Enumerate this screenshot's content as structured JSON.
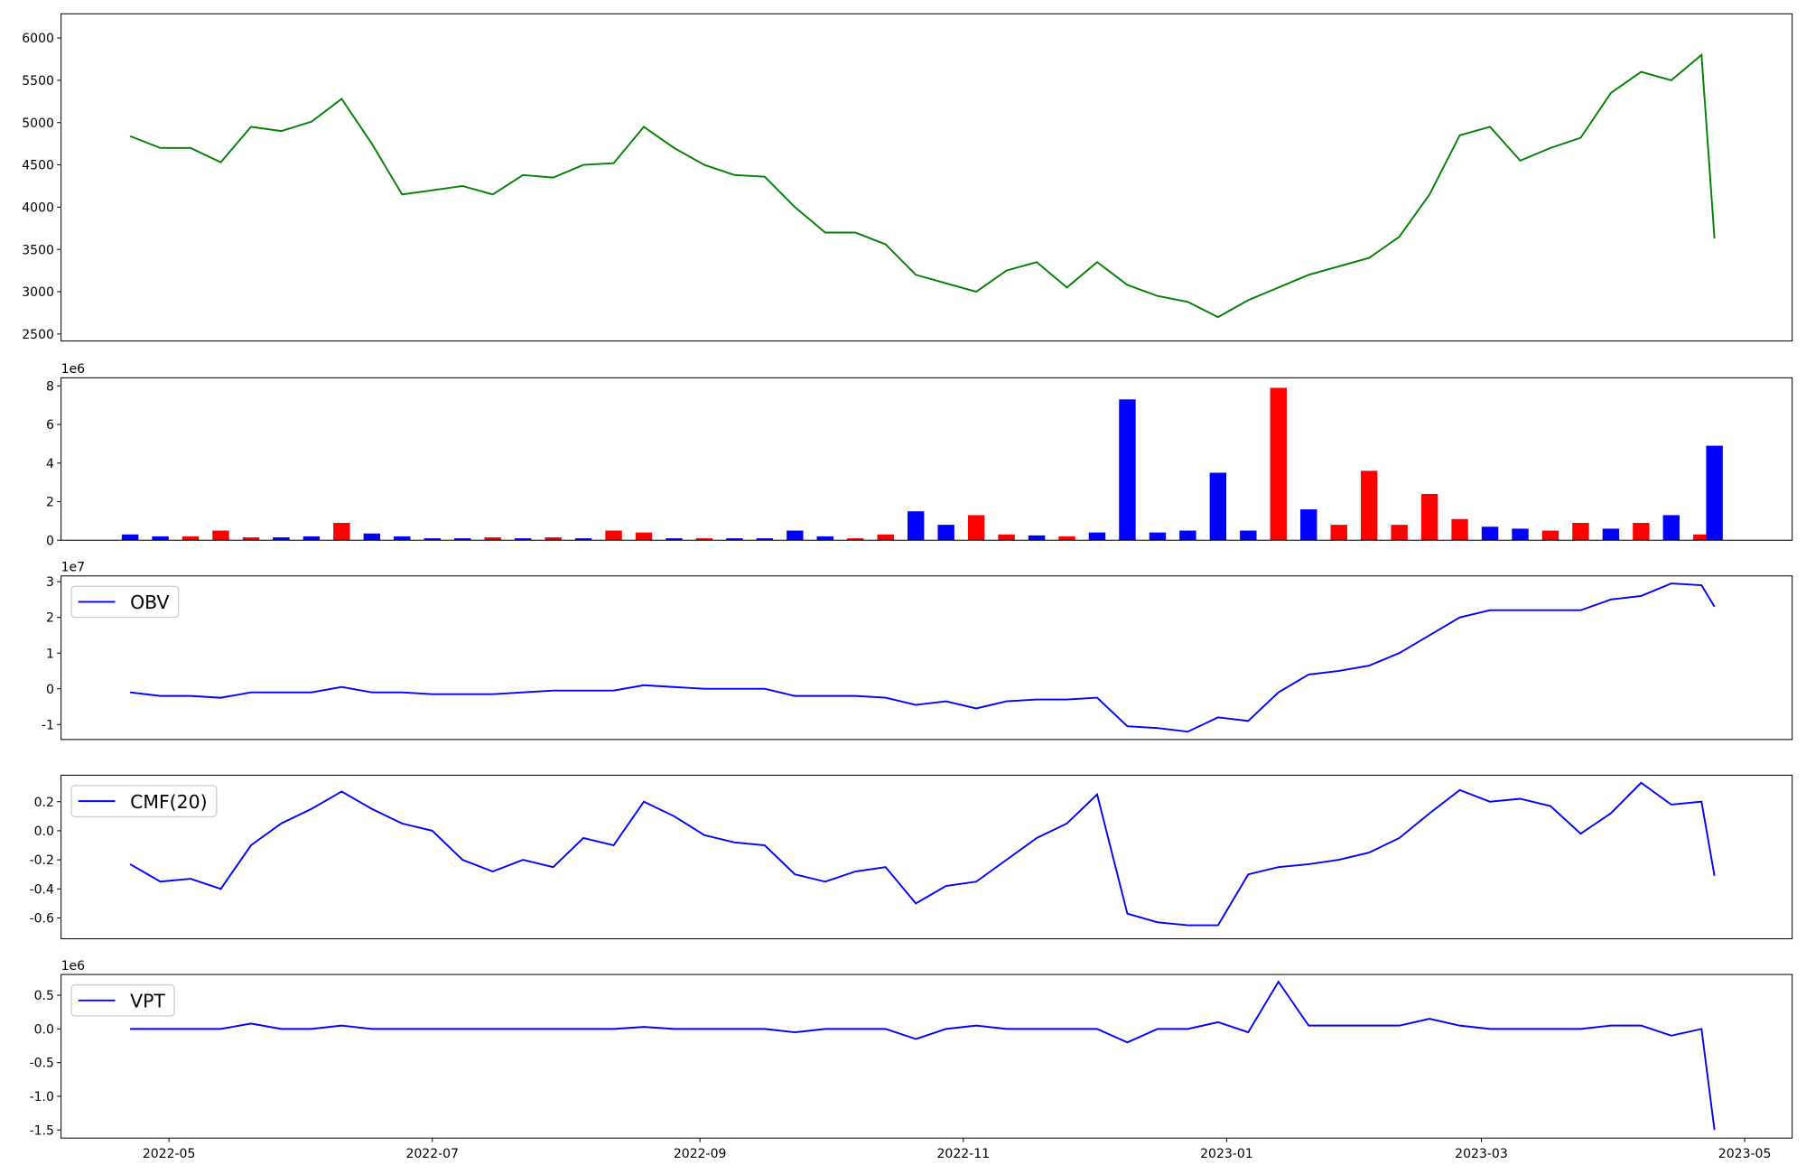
{
  "chart_data": [
    {
      "type": "line",
      "color": "#008000",
      "x": [
        "2022-04-22",
        "2022-04-29",
        "2022-05-06",
        "2022-05-13",
        "2022-05-20",
        "2022-05-27",
        "2022-06-03",
        "2022-06-10",
        "2022-06-17",
        "2022-06-24",
        "2022-07-01",
        "2022-07-08",
        "2022-07-15",
        "2022-07-22",
        "2022-07-29",
        "2022-08-05",
        "2022-08-12",
        "2022-08-19",
        "2022-08-26",
        "2022-09-02",
        "2022-09-09",
        "2022-09-16",
        "2022-09-23",
        "2022-09-30",
        "2022-10-07",
        "2022-10-14",
        "2022-10-21",
        "2022-10-28",
        "2022-11-04",
        "2022-11-11",
        "2022-11-18",
        "2022-11-25",
        "2022-12-02",
        "2022-12-09",
        "2022-12-16",
        "2022-12-23",
        "2022-12-30",
        "2023-01-06",
        "2023-01-13",
        "2023-01-20",
        "2023-01-27",
        "2023-02-03",
        "2023-02-10",
        "2023-02-17",
        "2023-02-24",
        "2023-03-03",
        "2023-03-10",
        "2023-03-17",
        "2023-03-24",
        "2023-03-31",
        "2023-04-07",
        "2023-04-14",
        "2023-04-21",
        "2023-04-24"
      ],
      "values": [
        4840,
        4700,
        4700,
        4530,
        4950,
        4900,
        5010,
        5280,
        4750,
        4150,
        4200,
        4250,
        4150,
        4380,
        4350,
        4500,
        4520,
        4950,
        4700,
        4500,
        4380,
        4360,
        4000,
        3700,
        3700,
        3560,
        3200,
        3100,
        3000,
        3250,
        3350,
        3050,
        3350,
        3080,
        2950,
        2880,
        2700,
        2900,
        3050,
        3200,
        3300,
        3400,
        3650,
        4150,
        4850,
        4950,
        4550,
        4700,
        4820,
        5350,
        5600,
        5500,
        5800,
        3630
      ],
      "xlim": [
        "2022-04-06",
        "2023-05-12"
      ],
      "ylim": [
        2418,
        6286
      ],
      "yticks": [
        2500,
        3000,
        3500,
        4000,
        4500,
        5000,
        5500,
        6000
      ]
    },
    {
      "type": "bar",
      "offset_label": "1e6",
      "x": [
        "2022-04-22",
        "2022-04-29",
        "2022-05-06",
        "2022-05-13",
        "2022-05-20",
        "2022-05-27",
        "2022-06-03",
        "2022-06-10",
        "2022-06-17",
        "2022-06-24",
        "2022-07-01",
        "2022-07-08",
        "2022-07-15",
        "2022-07-22",
        "2022-07-29",
        "2022-08-05",
        "2022-08-12",
        "2022-08-19",
        "2022-08-26",
        "2022-09-02",
        "2022-09-09",
        "2022-09-16",
        "2022-09-23",
        "2022-09-30",
        "2022-10-07",
        "2022-10-14",
        "2022-10-21",
        "2022-10-28",
        "2022-11-04",
        "2022-11-11",
        "2022-11-18",
        "2022-11-25",
        "2022-12-02",
        "2022-12-09",
        "2022-12-16",
        "2022-12-23",
        "2022-12-30",
        "2023-01-06",
        "2023-01-13",
        "2023-01-20",
        "2023-01-27",
        "2023-02-03",
        "2023-02-10",
        "2023-02-17",
        "2023-02-24",
        "2023-03-03",
        "2023-03-10",
        "2023-03-17",
        "2023-03-24",
        "2023-03-31",
        "2023-04-07",
        "2023-04-14",
        "2023-04-21",
        "2023-04-24"
      ],
      "values": [
        0.3,
        0.2,
        0.2,
        0.5,
        0.15,
        0.15,
        0.2,
        0.9,
        0.35,
        0.2,
        0.1,
        0.1,
        0.15,
        0.1,
        0.15,
        0.1,
        0.5,
        0.4,
        0.1,
        0.1,
        0.1,
        0.1,
        0.5,
        0.2,
        0.1,
        0.3,
        1.5,
        0.8,
        1.3,
        0.3,
        0.25,
        0.2,
        0.4,
        7.3,
        0.4,
        0.5,
        3.5,
        0.5,
        7.9,
        1.6,
        0.8,
        3.6,
        0.8,
        2.4,
        1.1,
        0.7,
        0.6,
        0.5,
        0.9,
        0.6,
        0.9,
        1.3,
        0.3,
        4.9
      ],
      "colors": [
        "blue",
        "blue",
        "red",
        "red",
        "red",
        "blue",
        "blue",
        "red",
        "blue",
        "blue",
        "blue",
        "blue",
        "red",
        "blue",
        "red",
        "blue",
        "red",
        "red",
        "blue",
        "red",
        "blue",
        "blue",
        "blue",
        "blue",
        "red",
        "red",
        "blue",
        "blue",
        "red",
        "red",
        "blue",
        "red",
        "blue",
        "blue",
        "blue",
        "blue",
        "blue",
        "blue",
        "red",
        "blue",
        "red",
        "red",
        "red",
        "red",
        "red",
        "blue",
        "blue",
        "red",
        "red",
        "blue",
        "red",
        "blue",
        "red",
        "blue"
      ],
      "xlim": [
        "2022-04-06",
        "2023-05-12"
      ],
      "ylim": [
        0,
        8.42
      ],
      "yticks": [
        0,
        2,
        4,
        6,
        8
      ]
    },
    {
      "type": "line",
      "offset_label": "1e7",
      "x": [
        "2022-04-22",
        "2022-04-29",
        "2022-05-06",
        "2022-05-13",
        "2022-05-20",
        "2022-05-27",
        "2022-06-03",
        "2022-06-10",
        "2022-06-17",
        "2022-06-24",
        "2022-07-01",
        "2022-07-08",
        "2022-07-15",
        "2022-07-22",
        "2022-07-29",
        "2022-08-05",
        "2022-08-12",
        "2022-08-19",
        "2022-08-26",
        "2022-09-02",
        "2022-09-09",
        "2022-09-16",
        "2022-09-23",
        "2022-09-30",
        "2022-10-07",
        "2022-10-14",
        "2022-10-21",
        "2022-10-28",
        "2022-11-04",
        "2022-11-11",
        "2022-11-18",
        "2022-11-25",
        "2022-12-02",
        "2022-12-09",
        "2022-12-16",
        "2022-12-23",
        "2022-12-30",
        "2023-01-06",
        "2023-01-13",
        "2023-01-20",
        "2023-01-27",
        "2023-02-03",
        "2023-02-10",
        "2023-02-17",
        "2023-02-24",
        "2023-03-03",
        "2023-03-10",
        "2023-03-17",
        "2023-03-24",
        "2023-03-31",
        "2023-04-07",
        "2023-04-14",
        "2023-04-21",
        "2023-04-24"
      ],
      "series": [
        {
          "name": "OBV",
          "color": "blue",
          "values": [
            -0.1,
            -0.2,
            -0.2,
            -0.25,
            -0.1,
            -0.1,
            -0.1,
            0.05,
            -0.1,
            -0.1,
            -0.15,
            -0.15,
            -0.15,
            -0.1,
            -0.05,
            -0.05,
            -0.05,
            0.1,
            0.05,
            0,
            0,
            0,
            -0.2,
            -0.2,
            -0.2,
            -0.25,
            -0.45,
            -0.35,
            -0.55,
            -0.35,
            -0.3,
            -0.3,
            -0.25,
            -1.05,
            -1.1,
            -1.2,
            -0.8,
            -0.9,
            -0.1,
            0.4,
            0.5,
            0.65,
            1.0,
            1.5,
            2.0,
            2.2,
            2.2,
            2.2,
            2.2,
            2.5,
            2.6,
            2.95,
            2.9,
            2.3
          ]
        }
      ],
      "xlim": [
        "2022-04-06",
        "2023-05-12"
      ],
      "ylim": [
        -1.42,
        3.16
      ],
      "yticks": [
        -1,
        0,
        1,
        2,
        3
      ]
    },
    {
      "type": "line",
      "x": [
        "2022-04-22",
        "2022-04-29",
        "2022-05-06",
        "2022-05-13",
        "2022-05-20",
        "2022-05-27",
        "2022-06-03",
        "2022-06-10",
        "2022-06-17",
        "2022-06-24",
        "2022-07-01",
        "2022-07-08",
        "2022-07-15",
        "2022-07-22",
        "2022-07-29",
        "2022-08-05",
        "2022-08-12",
        "2022-08-19",
        "2022-08-26",
        "2022-09-02",
        "2022-09-09",
        "2022-09-16",
        "2022-09-23",
        "2022-09-30",
        "2022-10-07",
        "2022-10-14",
        "2022-10-21",
        "2022-10-28",
        "2022-11-04",
        "2022-11-11",
        "2022-11-18",
        "2022-11-25",
        "2022-12-02",
        "2022-12-09",
        "2022-12-16",
        "2022-12-23",
        "2022-12-30",
        "2023-01-06",
        "2023-01-13",
        "2023-01-20",
        "2023-01-27",
        "2023-02-03",
        "2023-02-10",
        "2023-02-17",
        "2023-02-24",
        "2023-03-03",
        "2023-03-10",
        "2023-03-17",
        "2023-03-24",
        "2023-03-31",
        "2023-04-07",
        "2023-04-14",
        "2023-04-21",
        "2023-04-24"
      ],
      "series": [
        {
          "name": "CMF(20)",
          "color": "blue",
          "values": [
            -0.23,
            -0.35,
            -0.33,
            -0.4,
            -0.1,
            0.05,
            0.15,
            0.27,
            0.15,
            0.05,
            0.0,
            -0.2,
            -0.28,
            -0.2,
            -0.25,
            -0.05,
            -0.1,
            0.2,
            0.1,
            -0.03,
            -0.08,
            -0.1,
            -0.3,
            -0.35,
            -0.28,
            -0.25,
            -0.5,
            -0.38,
            -0.35,
            -0.2,
            -0.05,
            0.05,
            0.25,
            -0.57,
            -0.63,
            -0.65,
            -0.65,
            -0.3,
            -0.25,
            -0.23,
            -0.2,
            -0.15,
            -0.05,
            0.12,
            0.28,
            0.2,
            0.22,
            0.17,
            -0.02,
            0.12,
            0.33,
            0.18,
            0.2,
            -0.31
          ]
        }
      ],
      "xlim": [
        "2022-04-06",
        "2023-05-12"
      ],
      "ylim": [
        -0.743,
        0.382
      ],
      "yticks": [
        -0.6,
        -0.4,
        -0.2,
        {
          "value": 0,
          "label": "0.0"
        },
        0.2
      ]
    },
    {
      "type": "line",
      "offset_label": "1e6",
      "x": [
        "2022-04-22",
        "2022-04-29",
        "2022-05-06",
        "2022-05-13",
        "2022-05-20",
        "2022-05-27",
        "2022-06-03",
        "2022-06-10",
        "2022-06-17",
        "2022-06-24",
        "2022-07-01",
        "2022-07-08",
        "2022-07-15",
        "2022-07-22",
        "2022-07-29",
        "2022-08-05",
        "2022-08-12",
        "2022-08-19",
        "2022-08-26",
        "2022-09-02",
        "2022-09-09",
        "2022-09-16",
        "2022-09-23",
        "2022-09-30",
        "2022-10-07",
        "2022-10-14",
        "2022-10-21",
        "2022-10-28",
        "2022-11-04",
        "2022-11-11",
        "2022-11-18",
        "2022-11-25",
        "2022-12-02",
        "2022-12-09",
        "2022-12-16",
        "2022-12-23",
        "2022-12-30",
        "2023-01-06",
        "2023-01-13",
        "2023-01-20",
        "2023-01-27",
        "2023-02-03",
        "2023-02-10",
        "2023-02-17",
        "2023-02-24",
        "2023-03-03",
        "2023-03-10",
        "2023-03-17",
        "2023-03-24",
        "2023-03-31",
        "2023-04-07",
        "2023-04-14",
        "2023-04-21",
        "2023-04-24"
      ],
      "series": [
        {
          "name": "VPT",
          "color": "blue",
          "values": [
            0,
            0,
            0,
            0,
            0.08,
            0,
            0,
            0.05,
            0,
            0,
            0,
            0,
            0,
            0,
            0,
            0,
            0,
            0.03,
            0,
            0,
            0,
            0,
            -0.05,
            0,
            0,
            0,
            -0.15,
            0,
            0.05,
            0,
            0,
            0,
            0,
            -0.2,
            0,
            0,
            0.1,
            -0.05,
            0.7,
            0.05,
            0.05,
            0.05,
            0.05,
            0.15,
            0.05,
            0,
            0,
            0,
            0,
            0.05,
            0.05,
            -0.1,
            0,
            -1.5
          ]
        }
      ],
      "xlim": [
        "2022-04-06",
        "2023-05-12"
      ],
      "ylim": [
        -1.62,
        0.808
      ],
      "yticks": [
        -1.5,
        {
          "value": -1,
          "label": "-1.0"
        },
        -0.5,
        {
          "value": 0,
          "label": "0.0"
        },
        0.5
      ],
      "xticks": [
        {
          "value": "2022-05-01",
          "label": "2022-05"
        },
        {
          "value": "2022-07-01",
          "label": "2022-07"
        },
        {
          "value": "2022-09-01",
          "label": "2022-09"
        },
        {
          "value": "2022-11-01",
          "label": "2022-11"
        },
        {
          "value": "2023-01-01",
          "label": "2023-01"
        },
        {
          "value": "2023-03-01",
          "label": "2023-03"
        },
        {
          "value": "2023-05-01",
          "label": "2023-05"
        }
      ]
    }
  ]
}
